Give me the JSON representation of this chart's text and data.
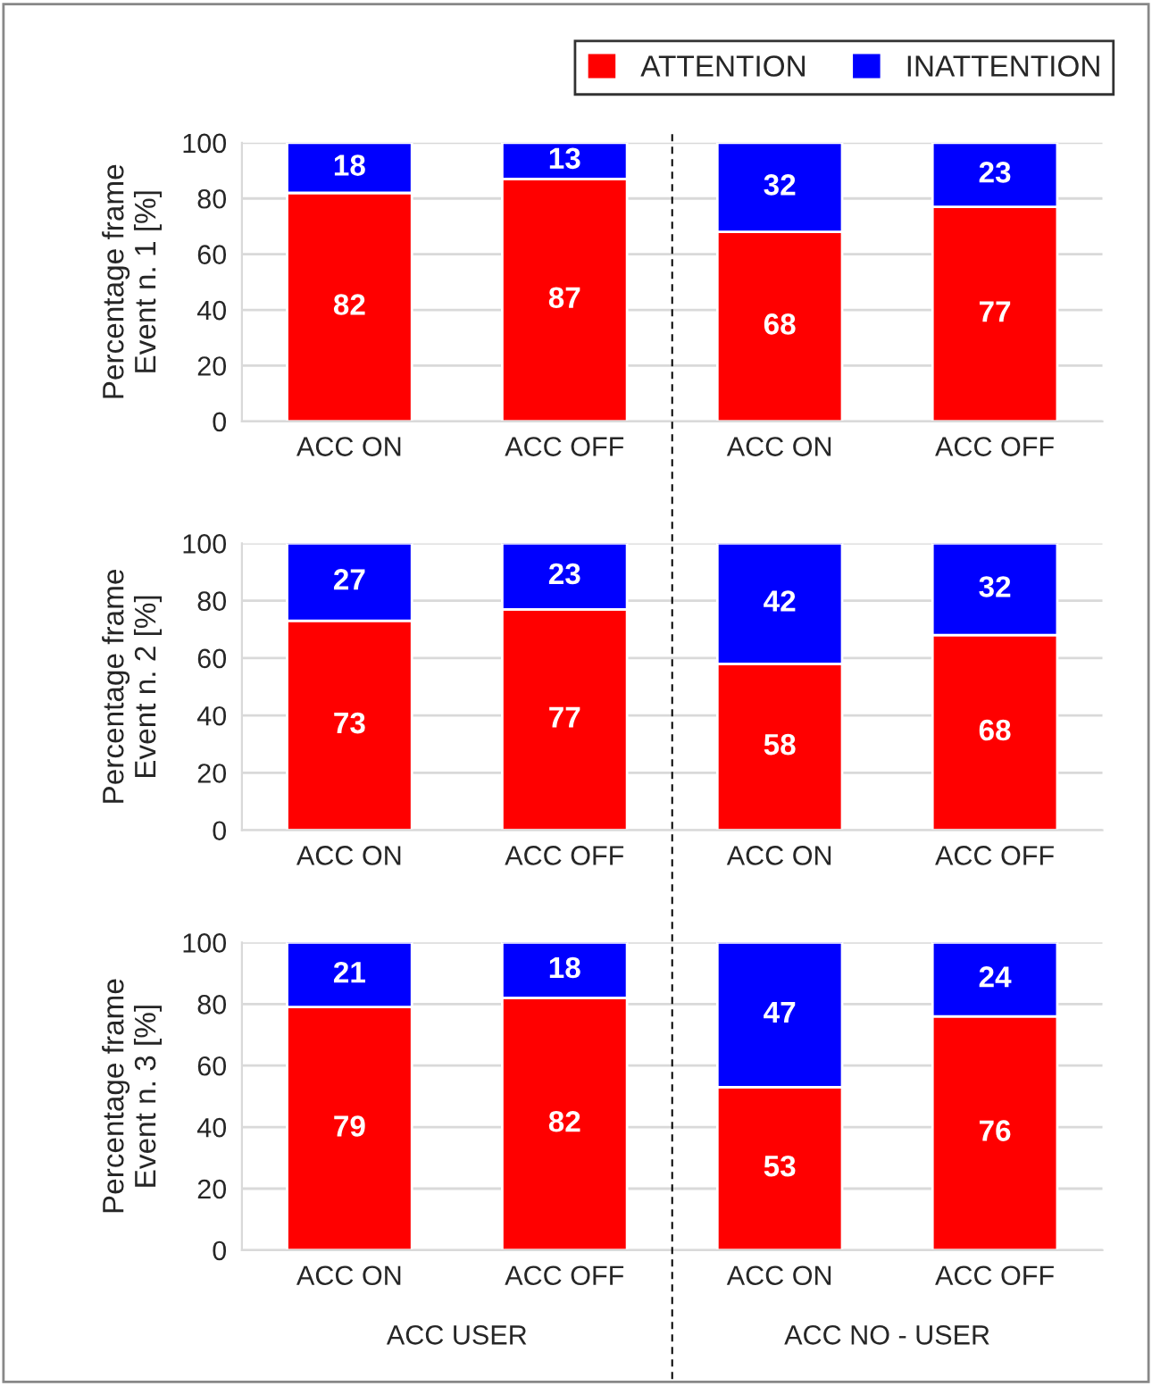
{
  "chart_data": [
    {
      "type": "bar",
      "stacked": true,
      "ylabel": "Percentage frame\nEvent n. 1 [%]",
      "categories": [
        "ACC ON",
        "ACC OFF",
        "ACC ON",
        "ACC OFF"
      ],
      "series": [
        {
          "name": "ATTENTION",
          "color": "#ff0000",
          "values": [
            82,
            87,
            68,
            77
          ]
        },
        {
          "name": "INATTENTION",
          "color": "#0000ff",
          "values": [
            18,
            13,
            32,
            23
          ]
        }
      ],
      "ylim": [
        0,
        100
      ],
      "yticks": [
        0,
        20,
        40,
        60,
        80,
        100
      ],
      "grid": "y",
      "data_labels": true,
      "legend": "top right"
    },
    {
      "type": "bar",
      "stacked": true,
      "ylabel": "Percentage frame\nEvent n. 2 [%]",
      "categories": [
        "ACC ON",
        "ACC OFF",
        "ACC ON",
        "ACC OFF"
      ],
      "series": [
        {
          "color": "#ff0000",
          "values": [
            73,
            77,
            58,
            68
          ]
        },
        {
          "color": "#0000ff",
          "values": [
            27,
            23,
            42,
            32
          ]
        }
      ],
      "ylim": [
        0,
        100
      ],
      "yticks": [
        0,
        20,
        40,
        60,
        80,
        100
      ],
      "grid": "y",
      "data_labels": true
    },
    {
      "type": "bar",
      "stacked": true,
      "ylabel": "Percentage frame\nEvent n. 3 [%]",
      "categories": [
        "ACC ON",
        "ACC OFF",
        "ACC ON",
        "ACC OFF"
      ],
      "series": [
        {
          "color": "#ff0000",
          "values": [
            79,
            82,
            53,
            76
          ]
        },
        {
          "color": "#0000ff",
          "values": [
            21,
            18,
            47,
            24
          ]
        }
      ],
      "ylim": [
        0,
        100
      ],
      "yticks": [
        0,
        20,
        40,
        60,
        80,
        100
      ],
      "grid": "y",
      "data_labels": true,
      "annotations": [
        "ACC USER",
        "ACC NO - USER"
      ]
    }
  ]
}
